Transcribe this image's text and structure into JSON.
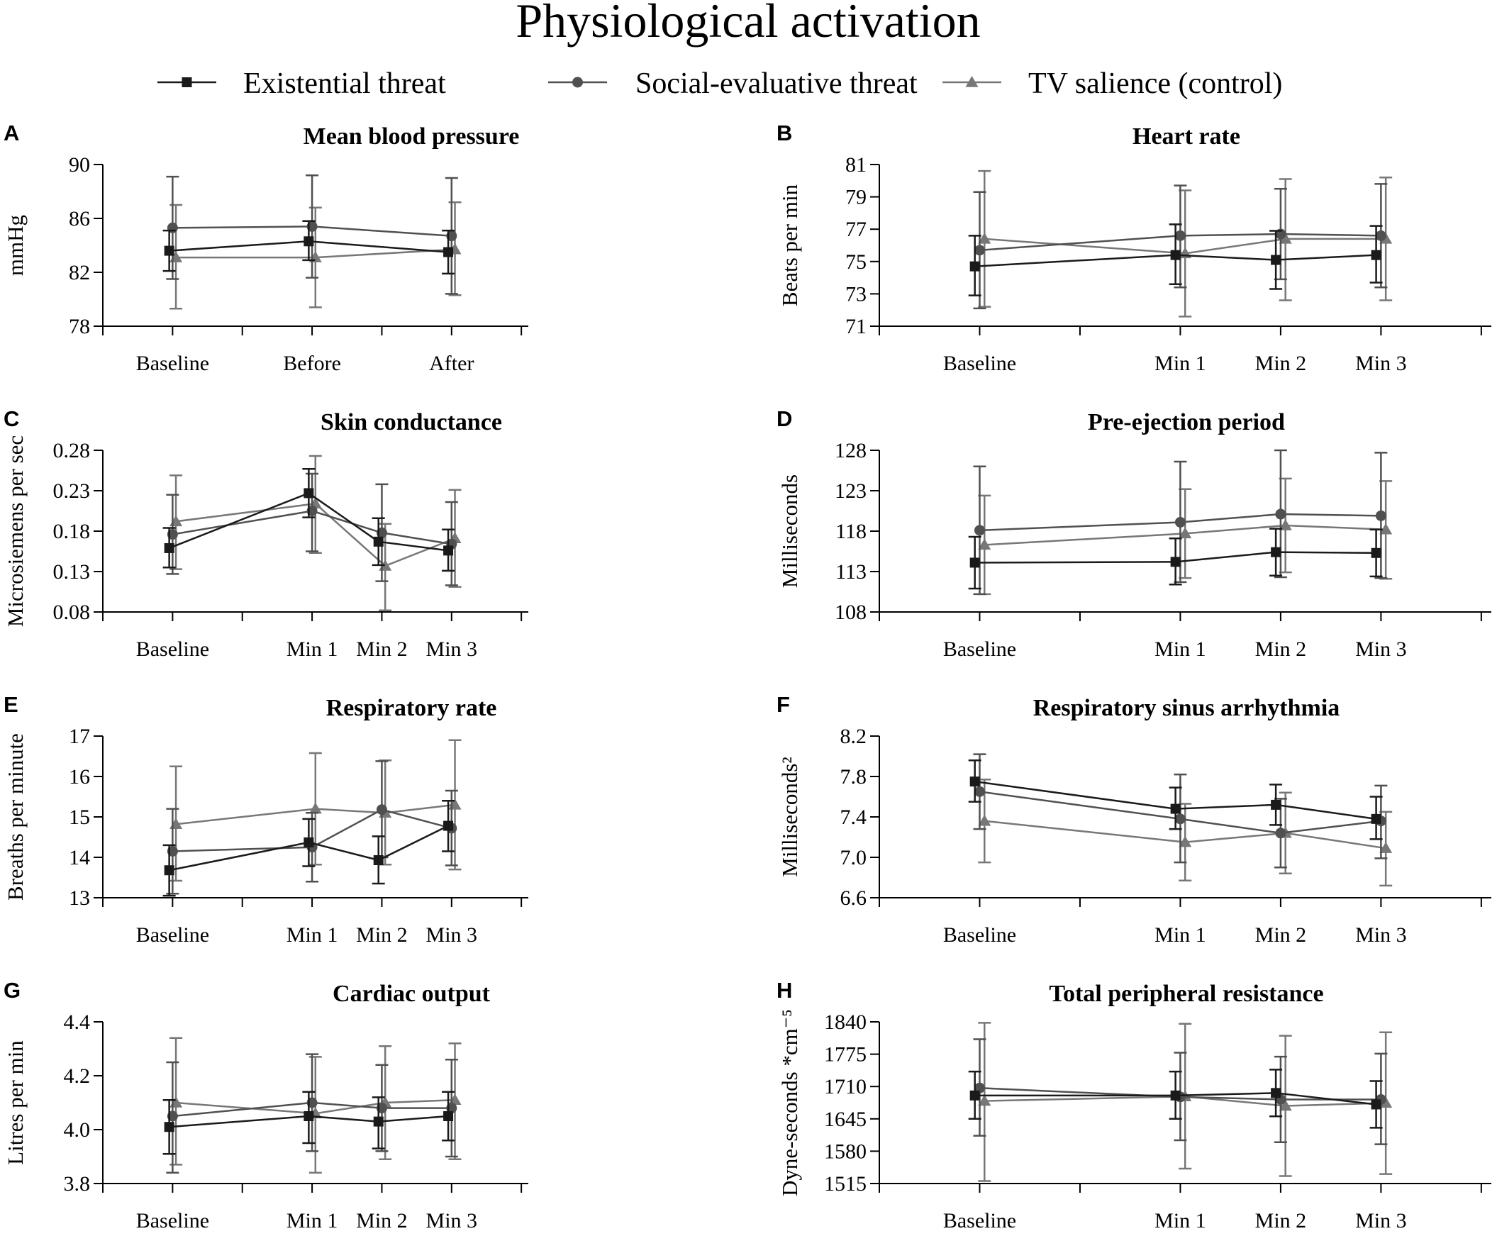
{
  "figure": {
    "title": "Physiological activation",
    "legend": [
      {
        "label": "Existential threat",
        "marker": "square",
        "color": "#1a1a1a"
      },
      {
        "label": "Social-evaluative threat",
        "marker": "circle",
        "color": "#505050"
      },
      {
        "label": "TV salience (control)",
        "marker": "triangle",
        "color": "#777777"
      }
    ]
  },
  "chart_data": [
    {
      "panel": "A",
      "type": "line",
      "title": "Mean blood pressure",
      "ylabel": "mmHg",
      "categories": [
        "Baseline",
        "Before",
        "After"
      ],
      "x": [
        0,
        2,
        4
      ],
      "xlim": [
        -1,
        5.1
      ],
      "ylim": [
        78,
        90
      ],
      "yticks": [
        78,
        82,
        86,
        90
      ],
      "ytick_labels": [
        "78",
        "82",
        "86",
        "90"
      ],
      "series": [
        {
          "name": "Existential threat",
          "values": [
            83.6,
            84.3,
            83.5
          ],
          "err_low": [
            82.1,
            82.9,
            81.9
          ],
          "err_high": [
            85.1,
            85.8,
            85.1
          ]
        },
        {
          "name": "Social-evaluative threat",
          "values": [
            85.3,
            85.4,
            84.7
          ],
          "err_low": [
            81.5,
            81.6,
            80.4
          ],
          "err_high": [
            89.1,
            89.2,
            89.0
          ]
        },
        {
          "name": "TV salience (control)",
          "values": [
            83.1,
            83.1,
            83.7
          ],
          "err_low": [
            79.3,
            79.4,
            80.3
          ],
          "err_high": [
            87.0,
            86.8,
            87.2
          ]
        }
      ]
    },
    {
      "panel": "B",
      "type": "line",
      "title": "Heart rate",
      "ylabel": "Beats per min",
      "categories": [
        "Baseline",
        "Min 1",
        "Min 2",
        "Min 3"
      ],
      "x": [
        0,
        2,
        3,
        4
      ],
      "xlim": [
        -1,
        5.1
      ],
      "ylim": [
        71,
        81
      ],
      "yticks": [
        71,
        73,
        75,
        77,
        79,
        81
      ],
      "ytick_labels": [
        "71",
        "73",
        "75",
        "77",
        "79",
        "81"
      ],
      "series": [
        {
          "name": "Existential threat",
          "values": [
            74.7,
            75.4,
            75.1,
            75.4
          ],
          "err_low": [
            72.9,
            73.6,
            73.3,
            73.7
          ],
          "err_high": [
            76.6,
            77.3,
            76.9,
            77.2
          ]
        },
        {
          "name": "Social-evaluative threat",
          "values": [
            75.7,
            76.6,
            76.7,
            76.6
          ],
          "err_low": [
            72.1,
            73.4,
            73.9,
            73.4
          ],
          "err_high": [
            79.3,
            79.7,
            79.5,
            79.8
          ]
        },
        {
          "name": "TV salience (control)",
          "values": [
            76.4,
            75.5,
            76.4,
            76.4
          ],
          "err_low": [
            72.2,
            71.6,
            72.6,
            72.6
          ],
          "err_high": [
            80.6,
            79.4,
            80.1,
            80.2
          ]
        }
      ]
    },
    {
      "panel": "C",
      "type": "line",
      "title": "Skin conductance",
      "ylabel": "Microsiemens per sec",
      "categories": [
        "Baseline",
        "Min 1",
        "Min 2",
        "Min 3"
      ],
      "x": [
        0,
        2,
        3,
        4
      ],
      "xlim": [
        -1,
        5.1
      ],
      "ylim": [
        0.08,
        0.28
      ],
      "yticks": [
        0.08,
        0.13,
        0.18,
        0.23,
        0.28
      ],
      "ytick_labels": [
        "0.08",
        "0.13",
        "0.18",
        "0.23",
        "0.28"
      ],
      "series": [
        {
          "name": "Existential threat",
          "values": [
            0.159,
            0.227,
            0.167,
            0.156
          ],
          "err_low": [
            0.135,
            0.197,
            0.138,
            0.131
          ],
          "err_high": [
            0.184,
            0.257,
            0.196,
            0.182
          ]
        },
        {
          "name": "Social-evaluative threat",
          "values": [
            0.176,
            0.205,
            0.178,
            0.164
          ],
          "err_low": [
            0.127,
            0.155,
            0.118,
            0.113
          ],
          "err_high": [
            0.225,
            0.251,
            0.238,
            0.216
          ]
        },
        {
          "name": "TV salience (control)",
          "values": [
            0.192,
            0.214,
            0.137,
            0.171
          ],
          "err_low": [
            0.133,
            0.153,
            0.082,
            0.111
          ],
          "err_high": [
            0.249,
            0.273,
            0.189,
            0.231
          ]
        }
      ]
    },
    {
      "panel": "D",
      "type": "line",
      "title": "Pre-ejection period",
      "ylabel": "Milliseconds",
      "categories": [
        "Baseline",
        "Min 1",
        "Min 2",
        "Min 3"
      ],
      "x": [
        0,
        2,
        3,
        4
      ],
      "xlim": [
        -1,
        5.1
      ],
      "ylim": [
        108,
        128
      ],
      "yticks": [
        108,
        113,
        118,
        123,
        128
      ],
      "ytick_labels": [
        "108",
        "113",
        "118",
        "123",
        "128"
      ],
      "series": [
        {
          "name": "Existential threat",
          "values": [
            114.1,
            114.2,
            115.4,
            115.3
          ],
          "err_low": [
            110.9,
            111.4,
            112.5,
            112.4
          ],
          "err_high": [
            117.3,
            117.1,
            118.3,
            118.2
          ]
        },
        {
          "name": "Social-evaluative threat",
          "values": [
            118.1,
            119.1,
            120.1,
            119.9
          ],
          "err_low": [
            110.2,
            111.7,
            112.3,
            112.2
          ],
          "err_high": [
            126.0,
            126.6,
            128.0,
            127.7
          ]
        },
        {
          "name": "TV salience (control)",
          "values": [
            116.3,
            117.7,
            118.7,
            118.2
          ],
          "err_low": [
            110.2,
            112.2,
            112.9,
            112.1
          ],
          "err_high": [
            122.4,
            123.2,
            124.5,
            124.2
          ]
        }
      ]
    },
    {
      "panel": "E",
      "type": "line",
      "title": "Respiratory rate",
      "ylabel": "Breaths per minute",
      "categories": [
        "Baseline",
        "Min 1",
        "Min 2",
        "Min 3"
      ],
      "x": [
        0,
        2,
        3,
        4
      ],
      "xlim": [
        -1,
        5.1
      ],
      "ylim": [
        13,
        17
      ],
      "yticks": [
        13,
        14,
        15,
        16,
        17
      ],
      "ytick_labels": [
        "13",
        "14",
        "15",
        "16",
        "17"
      ],
      "series": [
        {
          "name": "Existential threat",
          "values": [
            13.68,
            14.37,
            13.93,
            14.78
          ],
          "err_low": [
            13.05,
            13.78,
            13.35,
            14.15
          ],
          "err_high": [
            14.3,
            14.95,
            14.52,
            15.4
          ]
        },
        {
          "name": "Social-evaluative threat",
          "values": [
            14.15,
            14.25,
            15.18,
            14.72
          ],
          "err_low": [
            13.1,
            13.4,
            14.0,
            13.8
          ],
          "err_high": [
            15.2,
            15.1,
            16.38,
            15.65
          ]
        },
        {
          "name": "TV salience (control)",
          "values": [
            14.82,
            15.2,
            15.1,
            15.3
          ],
          "err_low": [
            13.42,
            13.82,
            13.82,
            13.7
          ],
          "err_high": [
            16.25,
            16.58,
            16.4,
            16.9
          ]
        }
      ]
    },
    {
      "panel": "F",
      "type": "line",
      "title": "Respiratory sinus arrhythmia",
      "ylabel": "Milliseconds²",
      "categories": [
        "Baseline",
        "Min 1",
        "Min 2",
        "Min 3"
      ],
      "x": [
        0,
        2,
        3,
        4
      ],
      "xlim": [
        -1,
        5.1
      ],
      "ylim": [
        6.6,
        8.2
      ],
      "yticks": [
        6.6,
        7.0,
        7.4,
        7.8,
        8.2
      ],
      "ytick_labels": [
        "6.6",
        "7.0",
        "7.4",
        "7.8",
        "8.2"
      ],
      "series": [
        {
          "name": "Existential threat",
          "values": [
            7.75,
            7.48,
            7.52,
            7.38
          ],
          "err_low": [
            7.55,
            7.28,
            7.32,
            7.18
          ],
          "err_high": [
            7.96,
            7.69,
            7.72,
            7.6
          ]
        },
        {
          "name": "Social-evaluative threat",
          "values": [
            7.65,
            7.38,
            7.24,
            7.36
          ],
          "err_low": [
            7.28,
            6.95,
            6.9,
            6.99
          ],
          "err_high": [
            8.02,
            7.82,
            7.58,
            7.71
          ]
        },
        {
          "name": "TV salience (control)",
          "values": [
            7.36,
            7.15,
            7.24,
            7.09
          ],
          "err_low": [
            6.95,
            6.77,
            6.84,
            6.72
          ],
          "err_high": [
            7.77,
            7.53,
            7.64,
            7.45
          ]
        }
      ]
    },
    {
      "panel": "G",
      "type": "line",
      "title": "Cardiac output",
      "ylabel": "Litres per min",
      "categories": [
        "Baseline",
        "Min 1",
        "Min 2",
        "Min 3"
      ],
      "x": [
        0,
        2,
        3,
        4
      ],
      "xlim": [
        -1,
        5.1
      ],
      "ylim": [
        3.8,
        4.4
      ],
      "yticks": [
        3.8,
        4.0,
        4.2,
        4.4
      ],
      "ytick_labels": [
        "3.8",
        "4.0",
        "4.2",
        "4.4"
      ],
      "series": [
        {
          "name": "Existential threat",
          "values": [
            4.01,
            4.05,
            4.03,
            4.05
          ],
          "err_low": [
            3.91,
            3.95,
            3.93,
            3.96
          ],
          "err_high": [
            4.11,
            4.14,
            4.12,
            4.14
          ]
        },
        {
          "name": "Social-evaluative threat",
          "values": [
            4.05,
            4.1,
            4.08,
            4.08
          ],
          "err_low": [
            3.84,
            3.92,
            3.92,
            3.9
          ],
          "err_high": [
            4.25,
            4.28,
            4.24,
            4.26
          ]
        },
        {
          "name": "TV salience (control)",
          "values": [
            4.1,
            4.06,
            4.1,
            4.11
          ],
          "err_low": [
            3.87,
            3.84,
            3.89,
            3.89
          ],
          "err_high": [
            4.34,
            4.27,
            4.31,
            4.32
          ]
        }
      ]
    },
    {
      "panel": "H",
      "type": "line",
      "title": "Total peripheral resistance",
      "ylabel": "Dyne-seconds *cm⁻⁵",
      "categories": [
        "Baseline",
        "Min 1",
        "Min 2",
        "Min 3"
      ],
      "x": [
        0,
        2,
        3,
        4
      ],
      "xlim": [
        -1,
        5.1
      ],
      "ylim": [
        1515,
        1840
      ],
      "yticks": [
        1515,
        1580,
        1645,
        1710,
        1775,
        1840
      ],
      "ytick_labels": [
        "1515",
        "1580",
        "1645",
        "1710",
        "1775",
        "1840"
      ],
      "series": [
        {
          "name": "Existential threat",
          "values": [
            1692,
            1692,
            1697,
            1674
          ],
          "err_low": [
            1645,
            1645,
            1650,
            1627
          ],
          "err_high": [
            1740,
            1740,
            1744,
            1721
          ]
        },
        {
          "name": "Social-evaluative threat",
          "values": [
            1707,
            1689,
            1684,
            1684
          ],
          "err_low": [
            1611,
            1602,
            1598,
            1594
          ],
          "err_high": [
            1805,
            1778,
            1770,
            1776
          ]
        },
        {
          "name": "TV salience (control)",
          "values": [
            1681,
            1690,
            1671,
            1677
          ],
          "err_low": [
            1520,
            1545,
            1530,
            1534
          ],
          "err_high": [
            1838,
            1836,
            1812,
            1819
          ]
        }
      ]
    }
  ]
}
